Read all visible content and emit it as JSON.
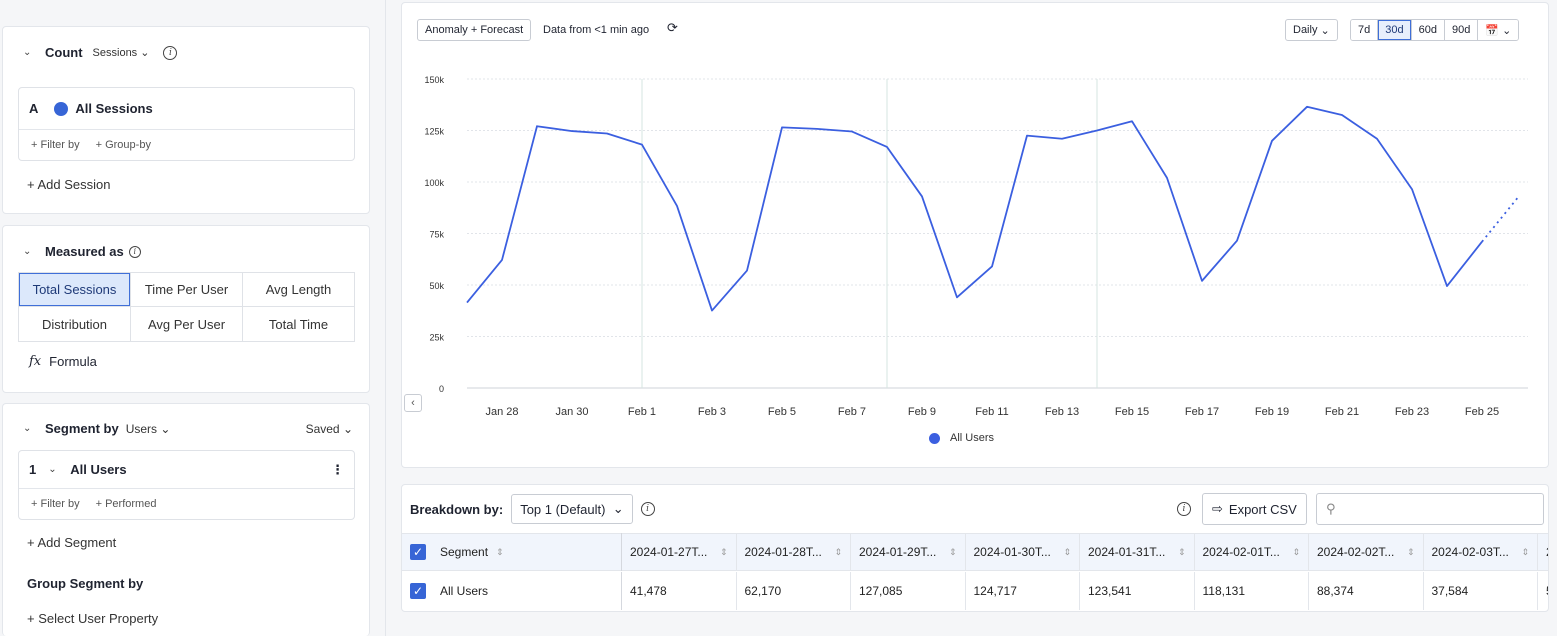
{
  "count": {
    "title": "Count",
    "metric_select": "Sessions",
    "event_letter": "A",
    "event_name": "All Sessions",
    "filter_by": "+ Filter by",
    "group_by": "+ Group-by",
    "add_session": "+ Add Session"
  },
  "measured": {
    "title": "Measured as",
    "options": [
      "Total Sessions",
      "Time Per User",
      "Avg Length",
      "Distribution",
      "Avg Per User",
      "Total Time"
    ],
    "formula_icon": "fx",
    "formula": "Formula"
  },
  "segment": {
    "title": "Segment by",
    "entity_select": "Users",
    "saved": "Saved",
    "index": "1",
    "name": "All Users",
    "filter_by": "+ Filter by",
    "performed": "+ Performed",
    "add_segment": "+ Add Segment",
    "group_title": "Group Segment by",
    "select_property": "+ Select User Property"
  },
  "toolbar": {
    "mode": "Anomaly + Forecast",
    "freshness": "Data from <1 min ago",
    "interval": "Daily",
    "ranges": [
      "7d",
      "30d",
      "60d",
      "90d"
    ],
    "active_range": "30d"
  },
  "chart_data": {
    "type": "line",
    "x": [
      "2024-01-27",
      "2024-01-28",
      "2024-01-29",
      "2024-01-30",
      "2024-01-31",
      "2024-02-01",
      "2024-02-02",
      "2024-02-03",
      "2024-02-04",
      "2024-02-05",
      "2024-02-06",
      "2024-02-07",
      "2024-02-08",
      "2024-02-09",
      "2024-02-10",
      "2024-02-11",
      "2024-02-12",
      "2024-02-13",
      "2024-02-14",
      "2024-02-15",
      "2024-02-16",
      "2024-02-17",
      "2024-02-18",
      "2024-02-19",
      "2024-02-20",
      "2024-02-21",
      "2024-02-22",
      "2024-02-23",
      "2024-02-24",
      "2024-02-25"
    ],
    "x_tick_labels": [
      "Jan 28",
      "Jan 30",
      "Feb 1",
      "Feb 3",
      "Feb 5",
      "Feb 7",
      "Feb 9",
      "Feb 11",
      "Feb 13",
      "Feb 15",
      "Feb 17",
      "Feb 19",
      "Feb 21",
      "Feb 23",
      "Feb 25"
    ],
    "y_tick_labels": [
      "0",
      "25k",
      "50k",
      "75k",
      "100k",
      "125k",
      "150k"
    ],
    "ylim": [
      0,
      150000
    ],
    "series": [
      {
        "name": "All Users",
        "color": "#3b5fe0",
        "values": [
          41478,
          62170,
          127085,
          124717,
          123541,
          118131,
          88374,
          37584,
          57000,
          126500,
          125800,
          124500,
          117000,
          93000,
          44000,
          59000,
          122500,
          121000,
          125000,
          129500,
          102000,
          52000,
          71500,
          120000,
          136500,
          132500,
          121000,
          96500,
          49500,
          71000
        ],
        "forecast_values": [
          71000,
          93000
        ]
      }
    ],
    "grid": true,
    "legend": "bottom-center"
  },
  "breakdown": {
    "label": "Breakdown by:",
    "select": "Top 1 (Default)",
    "export": "Export CSV",
    "segment_header": "Segment",
    "columns": [
      "2024-01-27T...",
      "2024-01-28T...",
      "2024-01-29T...",
      "2024-01-30T...",
      "2024-01-31T...",
      "2024-02-01T...",
      "2024-02-02T...",
      "2024-02-03T...",
      "2"
    ],
    "row_name": "All Users",
    "row_values": [
      "41,478",
      "62,170",
      "127,085",
      "124,717",
      "123,541",
      "118,131",
      "88,374",
      "37,584",
      "5"
    ]
  }
}
